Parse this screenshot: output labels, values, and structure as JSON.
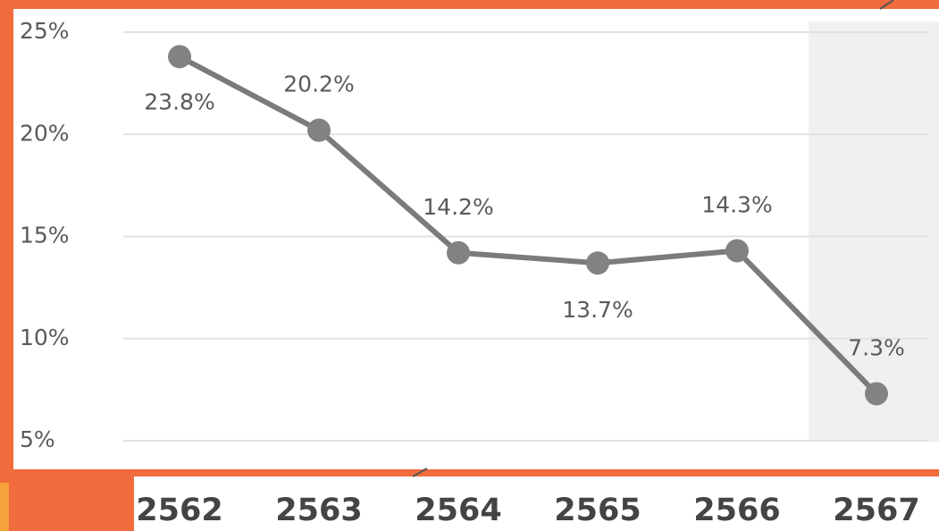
{
  "chart_data": {
    "type": "line",
    "categories": [
      "2562",
      "2563",
      "2564",
      "2565",
      "2566",
      "2567"
    ],
    "series": [
      {
        "color": "#7b7b7b",
        "values": [
          23.8,
          20.2,
          14.2,
          13.7,
          14.3,
          7.3
        ],
        "value_labels": [
          "23.8%",
          "20.2%",
          "14.2%",
          "13.7%",
          "14.3%",
          "7.3%"
        ]
      }
    ],
    "ylim": [
      5,
      25
    ],
    "yticks": [
      {
        "value": 5,
        "label": "5%"
      },
      {
        "value": 10,
        "label": "10%"
      },
      {
        "value": 15,
        "label": "15%"
      },
      {
        "value": 20,
        "label": "20%"
      },
      {
        "value": 25,
        "label": "25%"
      }
    ],
    "grid": true
  }
}
